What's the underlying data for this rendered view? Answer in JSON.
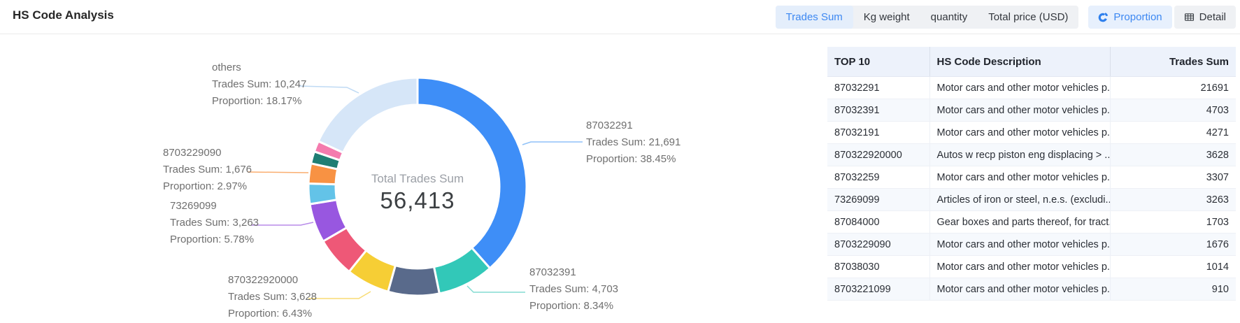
{
  "header": {
    "title": "HS Code Analysis",
    "metric_tabs": [
      {
        "label": "Trades Sum",
        "active": true
      },
      {
        "label": "Kg weight",
        "active": false
      },
      {
        "label": "quantity",
        "active": false
      },
      {
        "label": "Total price (USD)",
        "active": false
      }
    ],
    "view_tabs": [
      {
        "label": "Proportion",
        "icon": "pie-chart-icon",
        "active": true
      },
      {
        "label": "Detail",
        "icon": "table-icon",
        "active": false
      }
    ],
    "accent_color": "#3D88F2"
  },
  "chart_data": {
    "type": "pie",
    "subtype": "donut",
    "start_angle": "top",
    "direction": "clockwise",
    "inner_radius_ratio": 0.75,
    "center_label": "Total Trades Sum",
    "center_value": "56,413",
    "total": 56413,
    "trades_sum_label": "Trades Sum",
    "proportion_label": "Proportion",
    "legend_position": "none",
    "segments": [
      {
        "name": "87032291",
        "value": 21691,
        "value_text": "21,691",
        "proportion": "38.45%",
        "color": "#3E8EF7",
        "line_color": "#8FC1F8",
        "labeled": true
      },
      {
        "name": "87032391",
        "value": 4703,
        "value_text": "4,703",
        "proportion": "8.34%",
        "color": "#32C8B8",
        "line_color": "#84DCD2",
        "labeled": true
      },
      {
        "name": "87032191",
        "value": 4271,
        "value_text": "4,271",
        "proportion": "7.57%",
        "color": "#596A8B",
        "labeled": false
      },
      {
        "name": "870322920000",
        "value": 3628,
        "value_text": "3,628",
        "proportion": "6.43%",
        "color": "#F6CE35",
        "line_color": "#F8DC74",
        "labeled": true
      },
      {
        "name": "87032259",
        "value": 3307,
        "value_text": "3,307",
        "proportion": "5.86%",
        "color": "#EE5877",
        "labeled": false
      },
      {
        "name": "73269099",
        "value": 3263,
        "value_text": "3,263",
        "proportion": "5.78%",
        "color": "#9857E0",
        "line_color": "#B88CE9",
        "labeled": true
      },
      {
        "name": "87084000",
        "value": 1703,
        "value_text": "1,703",
        "proportion": "3.02%",
        "color": "#63C3E8",
        "labeled": false
      },
      {
        "name": "8703229090",
        "value": 1676,
        "value_text": "1,676",
        "proportion": "2.97%",
        "color": "#F89243",
        "line_color": "#FAAE70",
        "labeled": true
      },
      {
        "name": "87038030",
        "value": 1014,
        "value_text": "1,014",
        "proportion": "1.80%",
        "color": "#1F7E73",
        "labeled": false
      },
      {
        "name": "8703221099",
        "value": 910,
        "value_text": "910",
        "proportion": "1.61%",
        "color": "#F47BAE",
        "labeled": false
      },
      {
        "name": "others",
        "value": 10247,
        "value_text": "10,247",
        "proportion": "18.17%",
        "color": "#D6E6F8",
        "line_color": "#BFDAF4",
        "labeled": true
      }
    ]
  },
  "table": {
    "columns": [
      "TOP 10",
      "HS Code Description",
      "Trades Sum"
    ],
    "rows": [
      {
        "code": "87032291",
        "description": "Motor cars and other motor vehicles p...",
        "value": "21691"
      },
      {
        "code": "87032391",
        "description": "Motor cars and other motor vehicles p...",
        "value": "4703"
      },
      {
        "code": "87032191",
        "description": "Motor cars and other motor vehicles p...",
        "value": "4271"
      },
      {
        "code": "870322920000",
        "description": "Autos w recp piston eng displacing > ...",
        "value": "3628"
      },
      {
        "code": "87032259",
        "description": "Motor cars and other motor vehicles p...",
        "value": "3307"
      },
      {
        "code": "73269099",
        "description": "Articles of iron or steel, n.e.s. (excludi...",
        "value": "3263"
      },
      {
        "code": "87084000",
        "description": "Gear boxes and parts thereof, for tract...",
        "value": "1703"
      },
      {
        "code": "8703229090",
        "description": "Motor cars and other motor vehicles p...",
        "value": "1676"
      },
      {
        "code": "87038030",
        "description": "Motor cars and other motor vehicles p...",
        "value": "1014"
      },
      {
        "code": "8703221099",
        "description": "Motor cars and other motor vehicles p...",
        "value": "910"
      }
    ]
  }
}
